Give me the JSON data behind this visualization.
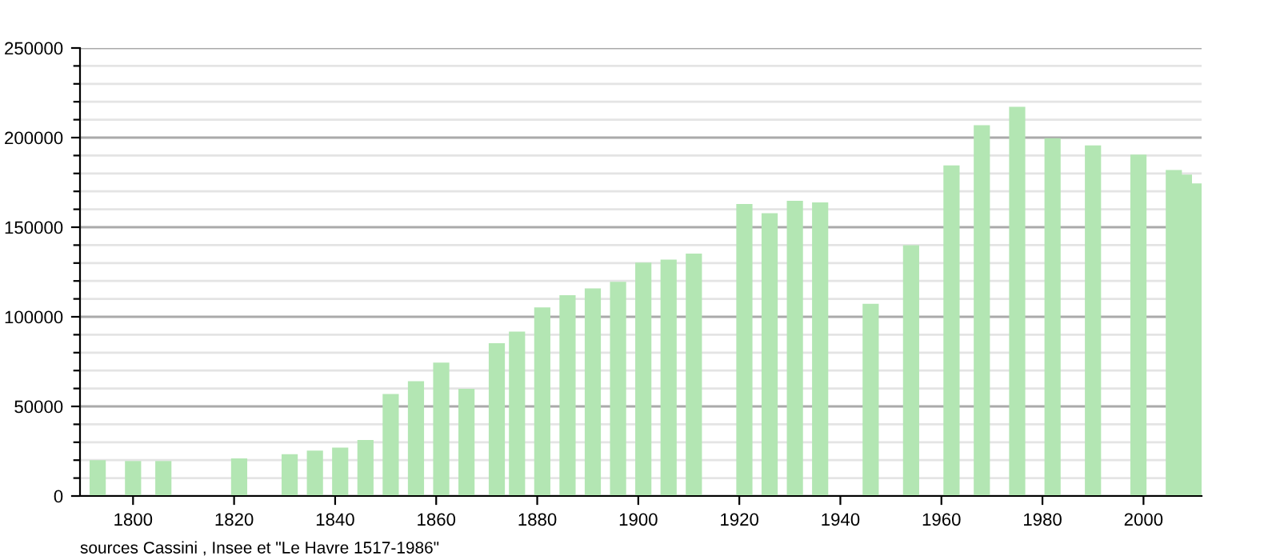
{
  "chart_data": {
    "type": "bar",
    "x": [
      1793,
      1800,
      1806,
      1821,
      1831,
      1836,
      1841,
      1846,
      1851,
      1856,
      1861,
      1866,
      1872,
      1876,
      1881,
      1886,
      1891,
      1896,
      1901,
      1906,
      1911,
      1921,
      1926,
      1931,
      1936,
      1946,
      1954,
      1962,
      1968,
      1975,
      1982,
      1990,
      1999,
      2006,
      2008,
      2010
    ],
    "values": [
      20000,
      19500,
      19500,
      21000,
      23300,
      25300,
      27000,
      31300,
      56900,
      64100,
      74400,
      59800,
      85300,
      91700,
      105200,
      112100,
      115800,
      119500,
      130200,
      131900,
      135300,
      163000,
      157800,
      164700,
      163800,
      107200,
      139900,
      184500,
      206900,
      217200,
      199700,
      195700,
      190500,
      181900,
      179300,
      174400
    ],
    "color": "#b3e6b3",
    "xlim": [
      1789.5,
      2011.5
    ],
    "xticks": [
      1800,
      1820,
      1840,
      1860,
      1880,
      1900,
      1920,
      1940,
      1960,
      1980,
      2000
    ],
    "ylim": [
      0,
      250000
    ],
    "yticks": [
      0,
      50000,
      100000,
      150000,
      200000,
      250000
    ],
    "grid": "y",
    "annotations": [
      "sources Cassini , Insee et \"Le Havre 1517-1986\""
    ]
  }
}
